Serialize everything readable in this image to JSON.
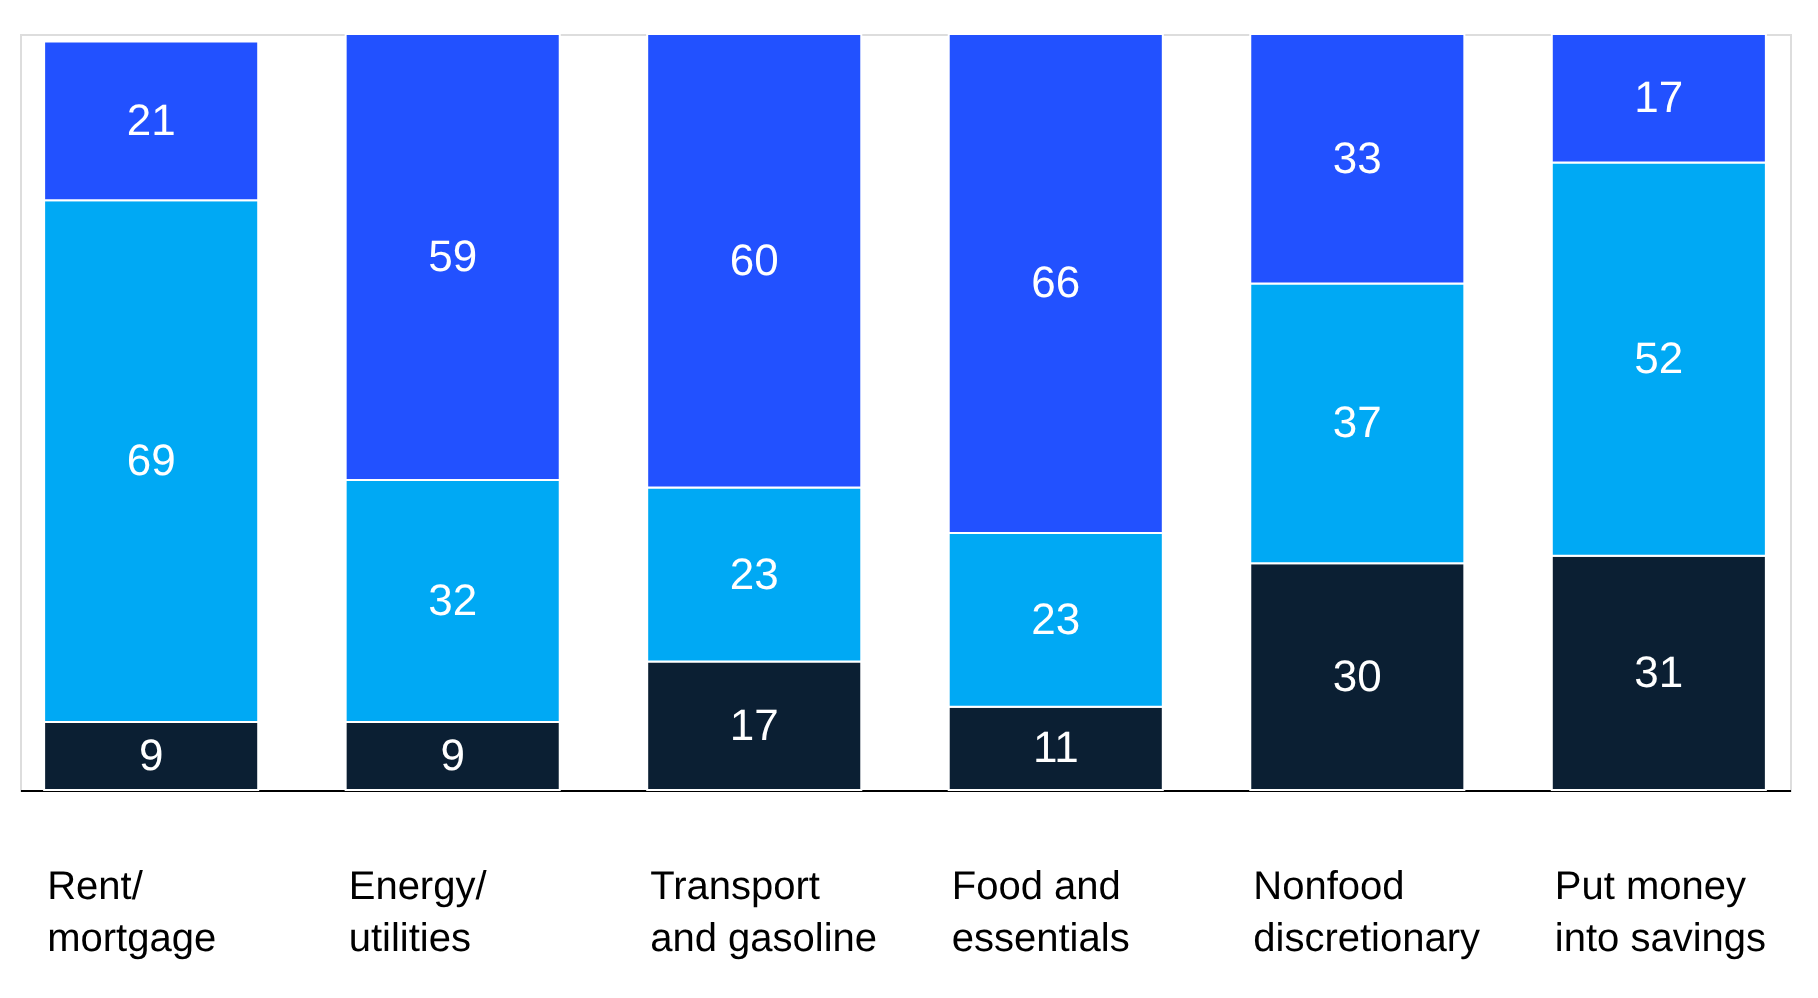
{
  "chart_data": {
    "type": "bar",
    "stacked": true,
    "data_labels": true,
    "ylim": [
      0,
      100
    ],
    "tick_labels": "x",
    "grid": false,
    "categories": [
      "Rent/\nmortgage",
      "Energy/\nutilities",
      "Transport\nand gasoline",
      "Food and\nessentials",
      "Nonfood\ndiscretionary",
      "Put money\ninto savings"
    ],
    "series": [
      {
        "color": "#0b1f33",
        "values": [
          9,
          9,
          17,
          11,
          30,
          31
        ]
      },
      {
        "color": "#00a9f4",
        "values": [
          69,
          32,
          23,
          23,
          37,
          52
        ]
      },
      {
        "color": "#2251ff",
        "values": [
          21,
          59,
          60,
          66,
          33,
          17
        ]
      }
    ]
  }
}
